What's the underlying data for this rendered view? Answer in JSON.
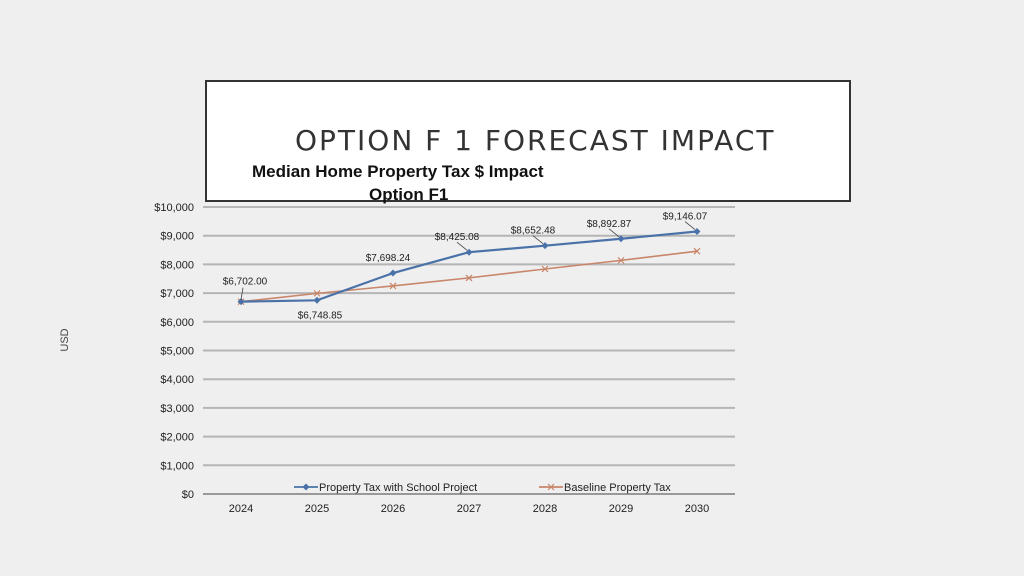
{
  "slide": {
    "title": "OPTION F 1 FORECAST IMPACT"
  },
  "chart_data": {
    "type": "line",
    "title": "Median Home Property Tax $ Impact",
    "subtitle": "Option F1",
    "xlabel": "",
    "ylabel": "USD",
    "categories": [
      "2024",
      "2025",
      "2026",
      "2027",
      "2028",
      "2029",
      "2030"
    ],
    "ylim": [
      0,
      10000
    ],
    "yticks": [
      0,
      1000,
      2000,
      3000,
      4000,
      5000,
      6000,
      7000,
      8000,
      9000,
      10000
    ],
    "ytick_labels": [
      "$0",
      "$1,000",
      "$2,000",
      "$3,000",
      "$4,000",
      "$5,000",
      "$6,000",
      "$7,000",
      "$8,000",
      "$9,000",
      "$10,000"
    ],
    "grid": true,
    "legend_position": "bottom",
    "series": [
      {
        "name": "Property Tax with School Project",
        "color": "#4a72a8",
        "marker": "diamond",
        "values": [
          6702.0,
          6748.85,
          7698.24,
          8425.08,
          8652.48,
          8892.87,
          9146.07
        ],
        "labels": [
          "$6,702.00",
          "$6,748.85",
          "$7,698.24",
          "$8,425.08",
          "$8,652.48",
          "$8,892.87",
          "$9,146.07"
        ]
      },
      {
        "name": "Baseline Property Tax",
        "color": "#c8856a",
        "marker": "x",
        "values": [
          6700,
          6990,
          7250,
          7530,
          7840,
          8140,
          8460
        ]
      }
    ]
  }
}
